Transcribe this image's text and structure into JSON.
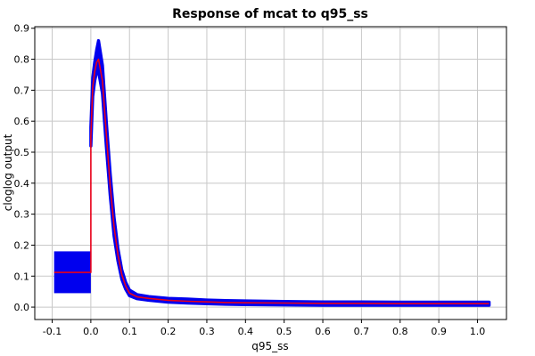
{
  "chart_data": {
    "type": "line",
    "title": "Response of mcat to q95_ss",
    "xlabel": "q95_ss",
    "ylabel": "cloglog output",
    "xlim": [
      -0.145,
      1.075
    ],
    "ylim": [
      -0.04,
      0.905
    ],
    "xticks": [
      -0.1,
      0.0,
      0.1,
      0.2,
      0.3,
      0.4,
      0.5,
      0.6,
      0.7,
      0.8,
      0.9,
      1.0
    ],
    "xtick_labels": [
      "-0.1",
      "0.0",
      "0.1",
      "0.2",
      "0.3",
      "0.4",
      "0.5",
      "0.6",
      "0.7",
      "0.8",
      "0.9",
      "1.0"
    ],
    "yticks": [
      0.0,
      0.1,
      0.2,
      0.3,
      0.4,
      0.5,
      0.6,
      0.7,
      0.8,
      0.9
    ],
    "ytick_labels": [
      "0.0",
      "0.1",
      "0.2",
      "0.3",
      "0.4",
      "0.5",
      "0.6",
      "0.7",
      "0.8",
      "0.9"
    ],
    "grid": true,
    "categorical_box": {
      "x": [
        -0.095,
        0.0
      ],
      "ylow": 0.045,
      "yhigh": 0.18,
      "mean": 0.112
    },
    "series": [
      {
        "role": "mean",
        "color": "#e8001a",
        "x": [
          -0.095,
          0.0,
          0.0,
          0.005,
          0.01,
          0.015,
          0.02,
          0.03,
          0.04,
          0.05,
          0.06,
          0.07,
          0.08,
          0.09,
          0.1,
          0.12,
          0.15,
          0.2,
          0.25,
          0.3,
          0.35,
          0.4,
          0.5,
          0.6,
          0.7,
          0.8,
          0.9,
          1.0,
          1.03
        ],
        "y": [
          0.112,
          0.112,
          0.55,
          0.71,
          0.76,
          0.79,
          0.8,
          0.73,
          0.56,
          0.39,
          0.26,
          0.17,
          0.105,
          0.068,
          0.045,
          0.033,
          0.028,
          0.022,
          0.019,
          0.017,
          0.015,
          0.014,
          0.013,
          0.012,
          0.012,
          0.011,
          0.011,
          0.011,
          0.011
        ]
      },
      {
        "role": "upper",
        "color": "#0000ee",
        "x": [
          0.0,
          0.005,
          0.01,
          0.015,
          0.02,
          0.03,
          0.04,
          0.05,
          0.06,
          0.07,
          0.08,
          0.09,
          0.1,
          0.12,
          0.15,
          0.2,
          0.25,
          0.3,
          0.35,
          0.4,
          0.5,
          0.6,
          0.7,
          0.8,
          0.9,
          1.0,
          1.03
        ],
        "y": [
          0.58,
          0.74,
          0.79,
          0.83,
          0.86,
          0.78,
          0.6,
          0.43,
          0.29,
          0.19,
          0.12,
          0.08,
          0.055,
          0.04,
          0.034,
          0.028,
          0.026,
          0.023,
          0.021,
          0.02,
          0.018,
          0.017,
          0.017,
          0.016,
          0.016,
          0.016,
          0.016
        ]
      },
      {
        "role": "lower",
        "color": "#0000ee",
        "x": [
          0.0,
          0.005,
          0.01,
          0.015,
          0.02,
          0.03,
          0.04,
          0.05,
          0.06,
          0.07,
          0.08,
          0.09,
          0.1,
          0.12,
          0.15,
          0.2,
          0.25,
          0.3,
          0.35,
          0.4,
          0.5,
          0.6,
          0.7,
          0.8,
          0.9,
          1.0,
          1.03
        ],
        "y": [
          0.52,
          0.68,
          0.73,
          0.76,
          0.76,
          0.69,
          0.52,
          0.36,
          0.23,
          0.15,
          0.09,
          0.058,
          0.037,
          0.027,
          0.022,
          0.016,
          0.013,
          0.011,
          0.009,
          0.008,
          0.007,
          0.006,
          0.006,
          0.006,
          0.006,
          0.006,
          0.006
        ]
      }
    ]
  }
}
